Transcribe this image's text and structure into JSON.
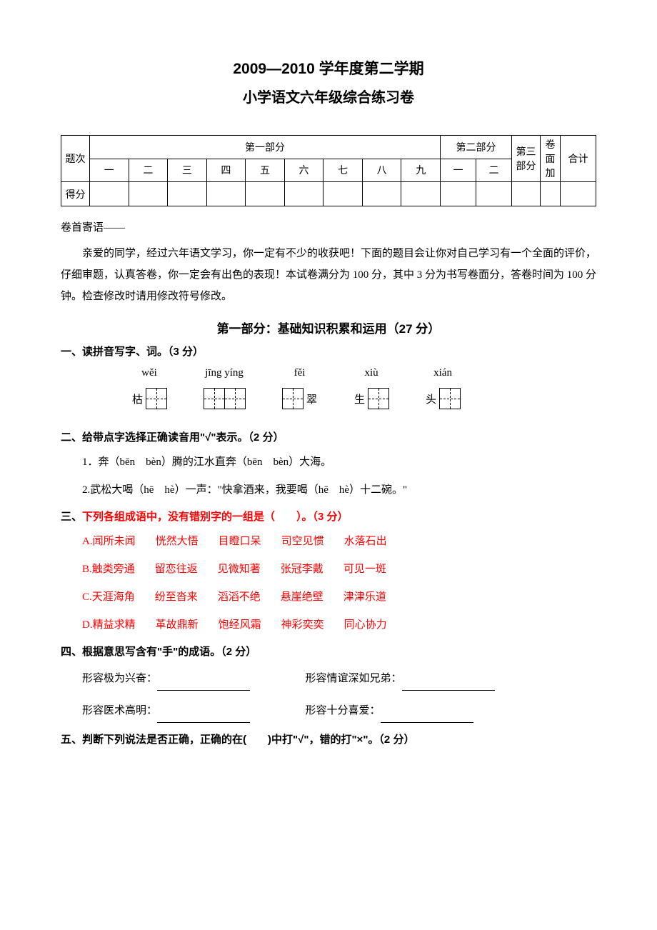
{
  "header": {
    "title_main": "2009—2010 学年度第二学期",
    "title_sub": "小学语文六年级综合练习卷"
  },
  "score_table": {
    "row_label_1": "题次",
    "row_label_2": "得分",
    "part1_header": "第一部分",
    "part2_header": "第二部分",
    "part3_header": "第三部分",
    "bonus_header": "卷面加",
    "total_header": "合计",
    "part1_cols": [
      "一",
      "二",
      "三",
      "四",
      "五",
      "六",
      "七",
      "八",
      "九"
    ],
    "part2_cols": [
      "一",
      "二"
    ]
  },
  "preface": {
    "label": "卷首寄语——",
    "text": "亲爱的同学，经过六年语文学习，你一定有不少的收获吧！下面的题目会让你对自己学习有一个全面的评价，仔细审题，认真答卷，你一定会有出色的表现！本试卷满分为 100 分，其中 3 分为书写卷面分，答卷时间为 100 分钟。检查修改时请用修改符号修改。"
  },
  "part1": {
    "title": "第一部分：基础知识积累和运用（27 分）"
  },
  "q1": {
    "title": "一、读拼音写字、词。（3 分）",
    "items": [
      {
        "pinyin": "wěi",
        "before": "枯",
        "boxes": 1,
        "after": ""
      },
      {
        "pinyin": "jīng yíng",
        "before": "",
        "boxes": 2,
        "after": ""
      },
      {
        "pinyin": "fěi",
        "before": "",
        "boxes": 1,
        "after": "翠"
      },
      {
        "pinyin": "xiù",
        "before": "生",
        "boxes": 1,
        "after": ""
      },
      {
        "pinyin": "xián",
        "before": "头",
        "boxes": 1,
        "after": ""
      }
    ]
  },
  "q2": {
    "title": "二、给带点字选择正确读音用\"√\"表示。（2 分）",
    "items": [
      "1．奔（bēn　bèn）腾的江水直奔（bēn　bèn）大海。",
      "2.武松大喝（hē　hè）一声：\"快拿酒来，我要喝（hē　hè）十二碗。\""
    ]
  },
  "q3": {
    "title": "三、下列各组成语中，没有错别字的一组是（　　）。（3 分）",
    "options": [
      [
        "A.闻所未闻",
        "恍然大悟",
        "目瞪口呆",
        "司空见惯",
        "水落石出"
      ],
      [
        "B.触类旁通",
        "留恋往返",
        "见微知著",
        "张冠李戴",
        "可见一斑"
      ],
      [
        "C.天涯海角",
        "纷至沓来",
        "滔滔不绝",
        "悬崖绝壁",
        "津津乐道"
      ],
      [
        "D.精益求精",
        "革故鼎新",
        "饱经风霜",
        "神彩奕奕",
        "同心协力"
      ]
    ]
  },
  "q4": {
    "title": "四、根据意思写含有\"手\"的成语。（2 分）",
    "rows": [
      {
        "left": "形容极为兴奋：",
        "right": "形容情谊深如兄弟："
      },
      {
        "left": "形容医术高明：",
        "right": "形容十分喜爱："
      }
    ]
  },
  "q5": {
    "title": "五、判断下列说法是否正确，正确的在(　　)中打\"√\"，错的打\"×\"。（2 分）"
  }
}
